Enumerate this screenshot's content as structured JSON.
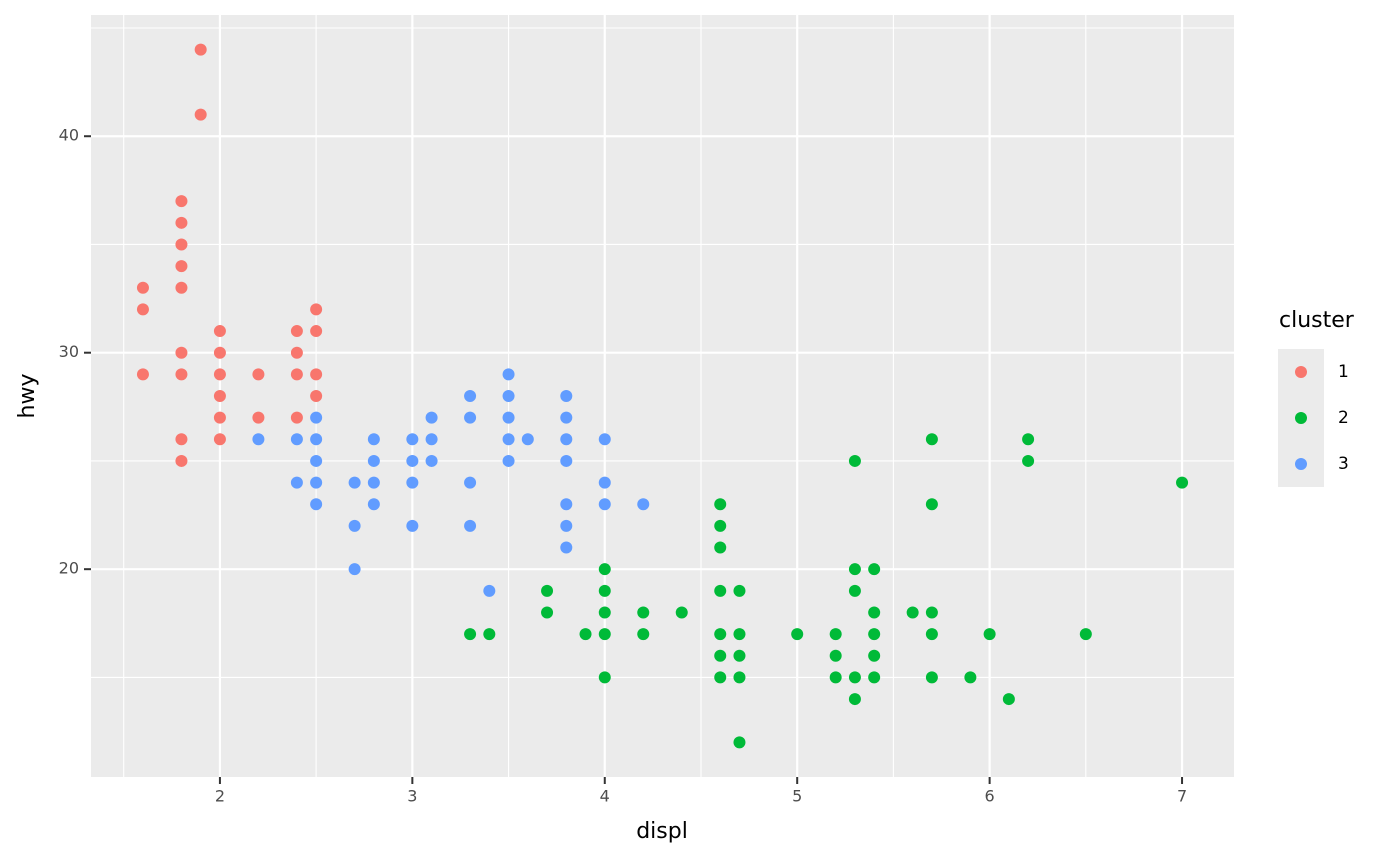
{
  "chart_data": {
    "type": "scatter",
    "x_label": "displ",
    "y_label": "hwy",
    "legend_title": "cluster",
    "xlim": [
      1.33,
      7.27
    ],
    "ylim": [
      10.4,
      45.6
    ],
    "xticks": [
      2,
      3,
      4,
      5,
      6,
      7
    ],
    "yticks": [
      20,
      30,
      40
    ],
    "minor_xticks": [
      1.5,
      2.5,
      3.5,
      4.5,
      5.5,
      6.5
    ],
    "minor_yticks": [
      15,
      25,
      35,
      45
    ],
    "grid": true,
    "legend": "right",
    "series": [
      {
        "name": "1",
        "color": "#F8766D",
        "x": [
          1.6,
          1.6,
          1.6,
          1.8,
          1.8,
          1.8,
          1.8,
          1.8,
          1.8,
          1.8,
          1.8,
          1.8,
          1.9,
          1.9,
          2.0,
          2.0,
          2.0,
          2.0,
          2.0,
          2.0,
          2.2,
          2.2,
          2.4,
          2.4,
          2.4,
          2.4,
          2.5,
          2.5,
          2.5,
          2.5
        ],
        "values": [
          33,
          32,
          29,
          37,
          36,
          35,
          34,
          33,
          30,
          29,
          26,
          25,
          44,
          41,
          31,
          30,
          29,
          28,
          27,
          26,
          29,
          27,
          31,
          30,
          29,
          27,
          32,
          31,
          29,
          28
        ]
      },
      {
        "name": "2",
        "color": "#00BA38",
        "x": [
          3.3,
          3.4,
          3.7,
          3.7,
          3.9,
          4.0,
          4.0,
          4.0,
          4.0,
          4.0,
          4.2,
          4.2,
          4.4,
          4.6,
          4.6,
          4.6,
          4.6,
          4.6,
          4.6,
          4.6,
          4.7,
          4.7,
          4.7,
          4.7,
          4.7,
          5.0,
          5.2,
          5.2,
          5.2,
          5.3,
          5.3,
          5.3,
          5.3,
          5.3,
          5.4,
          5.4,
          5.4,
          5.4,
          5.4,
          5.6,
          5.7,
          5.7,
          5.7,
          5.7,
          5.7,
          5.9,
          6.0,
          6.1,
          6.2,
          6.2,
          6.5,
          7.0
        ],
        "values": [
          17,
          17,
          19,
          18,
          17,
          20,
          19,
          18,
          17,
          15,
          18,
          17,
          18,
          23,
          22,
          21,
          19,
          17,
          16,
          15,
          19,
          17,
          16,
          15,
          12,
          17,
          17,
          16,
          15,
          25,
          20,
          19,
          15,
          14,
          20,
          18,
          17,
          16,
          15,
          18,
          26,
          23,
          18,
          17,
          15,
          15,
          17,
          14,
          26,
          25,
          17,
          24
        ]
      },
      {
        "name": "3",
        "color": "#619CFF",
        "x": [
          2.2,
          2.4,
          2.4,
          2.5,
          2.5,
          2.5,
          2.5,
          2.5,
          2.7,
          2.7,
          2.7,
          2.8,
          2.8,
          2.8,
          2.8,
          3.0,
          3.0,
          3.0,
          3.0,
          3.1,
          3.1,
          3.1,
          3.3,
          3.3,
          3.3,
          3.3,
          3.4,
          3.5,
          3.5,
          3.5,
          3.5,
          3.5,
          3.6,
          3.8,
          3.8,
          3.8,
          3.8,
          3.8,
          3.8,
          3.8,
          4.0,
          4.0,
          4.0,
          4.2
        ],
        "values": [
          26,
          26,
          24,
          27,
          26,
          25,
          24,
          23,
          24,
          22,
          20,
          26,
          25,
          24,
          23,
          26,
          25,
          24,
          22,
          27,
          26,
          25,
          28,
          27,
          24,
          22,
          19,
          29,
          28,
          27,
          26,
          25,
          26,
          28,
          27,
          26,
          25,
          23,
          22,
          21,
          26,
          24,
          23,
          23
        ]
      }
    ]
  }
}
